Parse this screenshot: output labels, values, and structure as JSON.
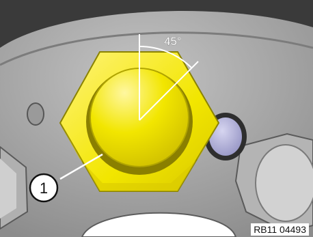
{
  "diagram": {
    "angle_label": "45°",
    "callout_number": "1",
    "reference_code": "RB11 04493"
  },
  "colors": {
    "plug": "#f2e600",
    "background_dark": "#3a3a3a",
    "surface": "#a8a8a8",
    "sensor": "#b6b5dc"
  }
}
